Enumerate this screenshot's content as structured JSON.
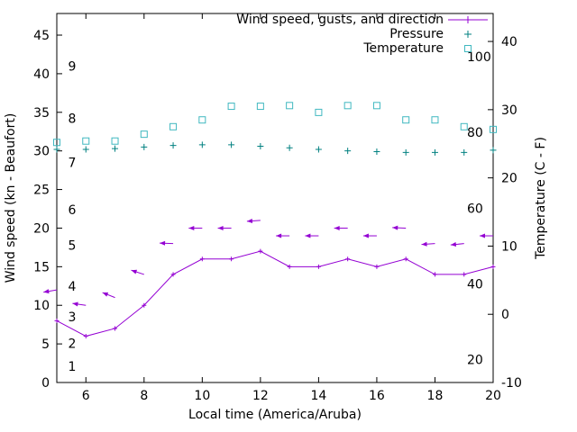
{
  "figure": {
    "bg_color": "#ffffff",
    "frame_color": "#000000",
    "text_color": "#000000"
  },
  "legend": {
    "entries": [
      {
        "label": "Wind speed, gusts, and direction",
        "marker": "line-plus",
        "color": "#9400d3"
      },
      {
        "label": "Pressure",
        "marker": "plus",
        "color": "#008080"
      },
      {
        "label": "Temperature",
        "marker": "open-square",
        "color": "#40b8c0"
      }
    ]
  },
  "axes": {
    "x_label": "Local time (America/Aruba)",
    "y_left_label": "Wind speed (kn - Beaufort)",
    "y_right_label": "Temperature (C - F)",
    "x_ticks": [
      6,
      8,
      10,
      12,
      14,
      16,
      18,
      20
    ],
    "y_left_ticks": [
      0,
      5,
      10,
      15,
      20,
      25,
      30,
      35,
      40,
      45
    ],
    "y_right_ticks": [
      -10,
      0,
      10,
      20,
      30,
      40
    ],
    "beaufort_scale_labels": [
      {
        "label": "1",
        "kn": 2.1
      },
      {
        "label": "2",
        "kn": 5.1
      },
      {
        "label": "3",
        "kn": 8.5
      },
      {
        "label": "4",
        "kn": 12.5
      },
      {
        "label": "5",
        "kn": 17.8
      },
      {
        "label": "6",
        "kn": 22.4
      },
      {
        "label": "7",
        "kn": 28.5
      },
      {
        "label": "8",
        "kn": 34.2
      },
      {
        "label": "9",
        "kn": 41.0
      }
    ],
    "fahrenheit_scale_labels": [
      {
        "label": "20",
        "f": 20
      },
      {
        "label": "40",
        "f": 40
      },
      {
        "label": "60",
        "f": 60
      },
      {
        "label": "80",
        "f": 80
      },
      {
        "label": "100",
        "f": 100
      }
    ]
  },
  "chart_data": {
    "type": "line",
    "title": "",
    "x": [
      5,
      6,
      7,
      8,
      9,
      10,
      11,
      12,
      13,
      14,
      15,
      16,
      17,
      18,
      19,
      20
    ],
    "x_range": [
      5,
      20
    ],
    "y_left_range": [
      0,
      47.8
    ],
    "y_right_range": [
      -10,
      44.1
    ],
    "grid": false,
    "legend_position": "top-right-inside",
    "series": [
      {
        "name": "Wind speed",
        "axis": "left",
        "unit": "kn",
        "style": "linespoints-plus",
        "color": "#9400d3",
        "values": [
          8,
          6,
          7,
          10,
          14,
          16,
          16,
          17,
          15,
          15,
          16,
          15,
          16,
          14,
          14,
          15
        ]
      },
      {
        "name": "Wind gusts with direction arrows",
        "axis": "left",
        "unit": "kn",
        "style": "direction-arrow",
        "color": "#9400d3",
        "values": [
          12,
          10,
          11,
          14,
          18,
          20,
          20,
          21,
          19,
          19,
          20,
          19,
          20,
          18,
          18,
          19
        ],
        "arrow_angle_deg": [
          190,
          172,
          158,
          162,
          178,
          180,
          180,
          184,
          180,
          180,
          180,
          180,
          178,
          184,
          186,
          180
        ]
      },
      {
        "name": "Pressure",
        "axis": "left",
        "style": "points-plus",
        "color": "#008080",
        "values": [
          30.2,
          30.2,
          30.3,
          30.5,
          30.7,
          30.8,
          30.8,
          30.6,
          30.4,
          30.2,
          30.0,
          29.9,
          29.8,
          29.8,
          29.8,
          30.1
        ]
      },
      {
        "name": "Temperature",
        "axis": "right",
        "unit": "C",
        "style": "points-open-square",
        "color": "#40b8c0",
        "values": [
          25.2,
          25.4,
          25.4,
          26.4,
          27.5,
          28.5,
          30.5,
          30.5,
          30.6,
          29.6,
          30.6,
          30.6,
          28.5,
          28.5,
          27.5,
          27.1
        ]
      }
    ]
  }
}
